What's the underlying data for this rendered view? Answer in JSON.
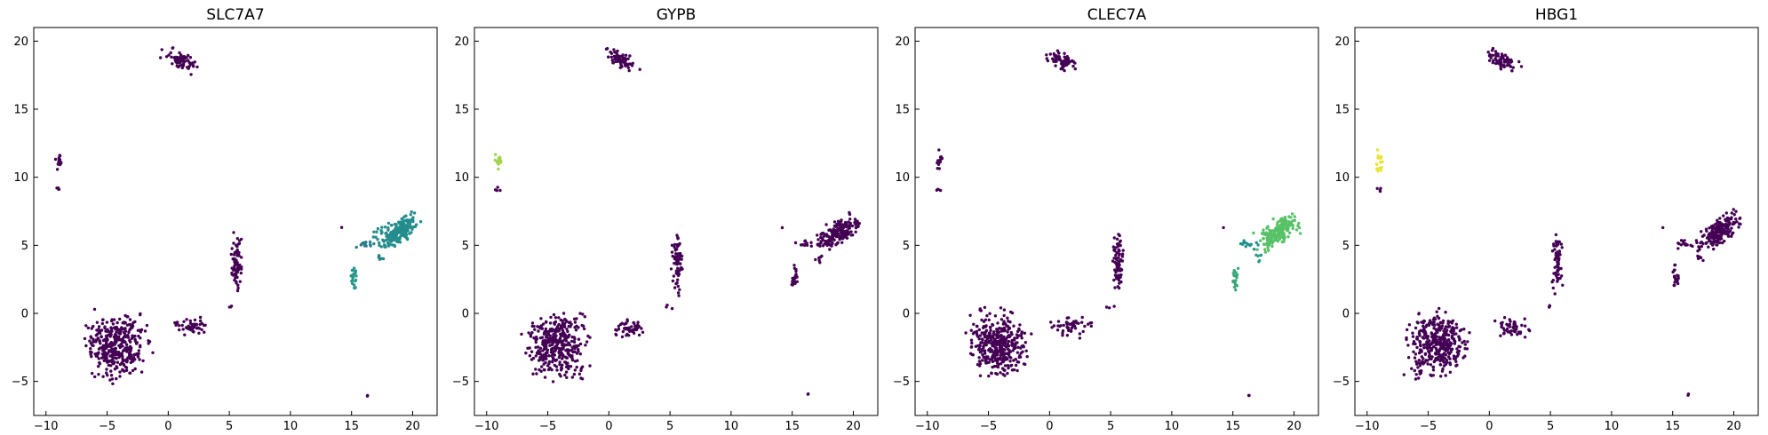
{
  "chart_data": [
    {
      "type": "scatter",
      "title": "SLC7A7",
      "xlim": [
        -11,
        22
      ],
      "ylim": [
        -7.5,
        21
      ],
      "xticks": [
        -10,
        -5,
        0,
        5,
        10,
        15,
        20
      ],
      "yticks": [
        -5,
        0,
        5,
        10,
        15,
        20
      ],
      "colormap": "viridis",
      "grid": false,
      "clusters": [
        {
          "name": "top",
          "cx": 1.0,
          "cy": 18.6,
          "n": 70,
          "level": 0.0
        },
        {
          "name": "left",
          "cx": -9.0,
          "cy": 11.2,
          "n": 14,
          "level": 0.0
        },
        {
          "name": "left-small",
          "cx": -9.1,
          "cy": 9.1,
          "n": 4,
          "level": 0.0
        },
        {
          "name": "main",
          "cx": -4.2,
          "cy": -2.3,
          "n": 380,
          "level": 0.0
        },
        {
          "name": "main-right",
          "cx": 1.8,
          "cy": -1.0,
          "n": 50,
          "level": 0.0
        },
        {
          "name": "middle-stripe",
          "cx": 5.6,
          "cy": 3.8,
          "n": 70,
          "level": 0.0
        },
        {
          "name": "middle-small",
          "cx": 5.0,
          "cy": 0.5,
          "n": 3,
          "level": 0.0
        },
        {
          "name": "right-large",
          "cx": 18.8,
          "cy": 6.0,
          "n": 190,
          "level": 0.48
        },
        {
          "name": "right-bridge",
          "cx": 16.0,
          "cy": 5.1,
          "n": 14,
          "level": 0.42
        },
        {
          "name": "right-small",
          "cx": 17.2,
          "cy": 4.0,
          "n": 6,
          "level": 0.44
        },
        {
          "name": "right-stripe",
          "cx": 15.2,
          "cy": 2.6,
          "n": 22,
          "level": 0.52
        },
        {
          "name": "isolated-a",
          "cx": 14.2,
          "cy": 6.3,
          "n": 1,
          "level": 0.0
        },
        {
          "name": "isolated-b",
          "cx": 16.3,
          "cy": -6.0,
          "n": 2,
          "level": 0.0
        }
      ]
    },
    {
      "type": "scatter",
      "title": "GYPB",
      "xlim": [
        -11,
        22
      ],
      "ylim": [
        -7.5,
        21
      ],
      "xticks": [
        -10,
        -5,
        0,
        5,
        10,
        15,
        20
      ],
      "yticks": [
        -5,
        0,
        5,
        10,
        15,
        20
      ],
      "colormap": "viridis",
      "grid": false,
      "clusters": [
        {
          "name": "top",
          "cx": 1.0,
          "cy": 18.6,
          "n": 70,
          "level": 0.0
        },
        {
          "name": "left",
          "cx": -9.0,
          "cy": 11.2,
          "n": 14,
          "level": 0.85
        },
        {
          "name": "left-small",
          "cx": -9.1,
          "cy": 9.1,
          "n": 4,
          "level": 0.0
        },
        {
          "name": "main",
          "cx": -4.2,
          "cy": -2.3,
          "n": 380,
          "level": 0.0
        },
        {
          "name": "main-right",
          "cx": 1.8,
          "cy": -1.0,
          "n": 50,
          "level": 0.0
        },
        {
          "name": "middle-stripe",
          "cx": 5.6,
          "cy": 3.8,
          "n": 70,
          "level": 0.0
        },
        {
          "name": "middle-small",
          "cx": 5.0,
          "cy": 0.5,
          "n": 3,
          "level": 0.0
        },
        {
          "name": "right-large",
          "cx": 18.8,
          "cy": 6.0,
          "n": 190,
          "level": 0.0
        },
        {
          "name": "right-bridge",
          "cx": 16.0,
          "cy": 5.1,
          "n": 14,
          "level": 0.0
        },
        {
          "name": "right-small",
          "cx": 17.2,
          "cy": 4.0,
          "n": 6,
          "level": 0.0
        },
        {
          "name": "right-stripe",
          "cx": 15.2,
          "cy": 2.6,
          "n": 22,
          "level": 0.0
        },
        {
          "name": "isolated-a",
          "cx": 14.2,
          "cy": 6.3,
          "n": 1,
          "level": 0.0
        },
        {
          "name": "isolated-b",
          "cx": 16.3,
          "cy": -6.0,
          "n": 2,
          "level": 0.0
        }
      ]
    },
    {
      "type": "scatter",
      "title": "CLEC7A",
      "xlim": [
        -11,
        22
      ],
      "ylim": [
        -7.5,
        21
      ],
      "xticks": [
        -10,
        -5,
        0,
        5,
        10,
        15,
        20
      ],
      "yticks": [
        -5,
        0,
        5,
        10,
        15,
        20
      ],
      "colormap": "viridis",
      "grid": false,
      "clusters": [
        {
          "name": "top",
          "cx": 1.0,
          "cy": 18.6,
          "n": 70,
          "level": 0.0
        },
        {
          "name": "left",
          "cx": -9.0,
          "cy": 11.2,
          "n": 14,
          "level": 0.0
        },
        {
          "name": "left-small",
          "cx": -9.1,
          "cy": 9.1,
          "n": 4,
          "level": 0.0
        },
        {
          "name": "main",
          "cx": -4.2,
          "cy": -2.3,
          "n": 380,
          "level": 0.0
        },
        {
          "name": "main-right",
          "cx": 1.8,
          "cy": -1.0,
          "n": 50,
          "level": 0.0
        },
        {
          "name": "middle-stripe",
          "cx": 5.6,
          "cy": 3.8,
          "n": 70,
          "level": 0.0
        },
        {
          "name": "middle-small",
          "cx": 5.0,
          "cy": 0.5,
          "n": 3,
          "level": 0.0
        },
        {
          "name": "right-large",
          "cx": 18.8,
          "cy": 6.0,
          "n": 190,
          "level": 0.72
        },
        {
          "name": "right-bridge",
          "cx": 16.0,
          "cy": 5.1,
          "n": 14,
          "level": 0.5
        },
        {
          "name": "right-small",
          "cx": 17.2,
          "cy": 4.0,
          "n": 6,
          "level": 0.55
        },
        {
          "name": "right-stripe",
          "cx": 15.2,
          "cy": 2.6,
          "n": 22,
          "level": 0.6
        },
        {
          "name": "isolated-a",
          "cx": 14.2,
          "cy": 6.3,
          "n": 1,
          "level": 0.0
        },
        {
          "name": "isolated-b",
          "cx": 16.3,
          "cy": -6.0,
          "n": 2,
          "level": 0.0
        }
      ]
    },
    {
      "type": "scatter",
      "title": "HBG1",
      "xlim": [
        -11,
        22
      ],
      "ylim": [
        -7.5,
        21
      ],
      "xticks": [
        -10,
        -5,
        0,
        5,
        10,
        15,
        20
      ],
      "yticks": [
        -5,
        0,
        5,
        10,
        15,
        20
      ],
      "colormap": "viridis",
      "grid": false,
      "clusters": [
        {
          "name": "top",
          "cx": 1.0,
          "cy": 18.6,
          "n": 70,
          "level": 0.0
        },
        {
          "name": "left",
          "cx": -9.0,
          "cy": 11.2,
          "n": 14,
          "level": 0.97
        },
        {
          "name": "left-small",
          "cx": -9.1,
          "cy": 9.1,
          "n": 4,
          "level": 0.0
        },
        {
          "name": "main",
          "cx": -4.2,
          "cy": -2.3,
          "n": 380,
          "level": 0.0
        },
        {
          "name": "main-right",
          "cx": 1.8,
          "cy": -1.0,
          "n": 50,
          "level": 0.0
        },
        {
          "name": "middle-stripe",
          "cx": 5.6,
          "cy": 3.8,
          "n": 70,
          "level": 0.0
        },
        {
          "name": "middle-small",
          "cx": 5.0,
          "cy": 0.5,
          "n": 3,
          "level": 0.0
        },
        {
          "name": "right-large",
          "cx": 18.8,
          "cy": 6.0,
          "n": 190,
          "level": 0.0
        },
        {
          "name": "right-bridge",
          "cx": 16.0,
          "cy": 5.1,
          "n": 14,
          "level": 0.0
        },
        {
          "name": "right-small",
          "cx": 17.2,
          "cy": 4.0,
          "n": 6,
          "level": 0.0
        },
        {
          "name": "right-stripe",
          "cx": 15.2,
          "cy": 2.6,
          "n": 22,
          "level": 0.0
        },
        {
          "name": "isolated-a",
          "cx": 14.2,
          "cy": 6.3,
          "n": 1,
          "level": 0.0
        },
        {
          "name": "isolated-b",
          "cx": 16.3,
          "cy": -6.0,
          "n": 2,
          "level": 0.0
        }
      ]
    }
  ]
}
